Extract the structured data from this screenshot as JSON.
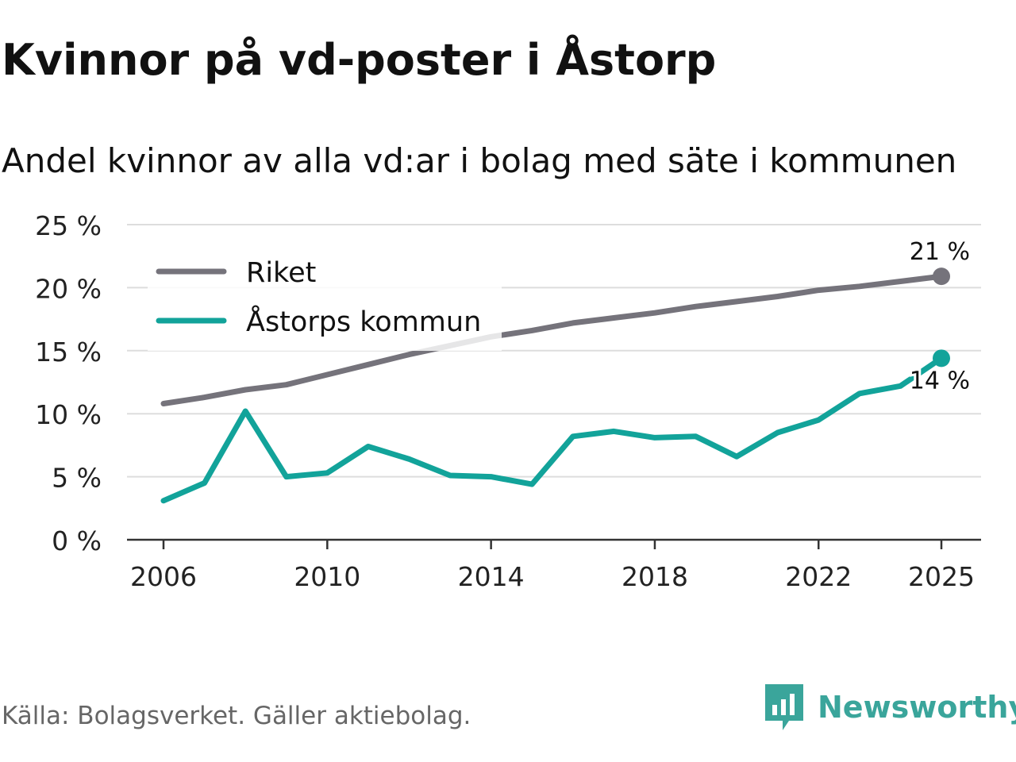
{
  "title": "Kvinnor på vd-poster i Åstorp",
  "subtitle": "Andel kvinnor av alla vd:ar i bolag med säte i kommunen",
  "source": "Källa: Bolagsverket. Gäller aktiebolag.",
  "brand": "Newsworthy",
  "colors": {
    "riket": "#75737b",
    "kommun": "#12a39a",
    "grid": "#dddddd",
    "axis": "#333333",
    "brand": "#3aa59b"
  },
  "chart_data": {
    "type": "line",
    "title": "Kvinnor på vd-poster i Åstorp",
    "subtitle": "Andel kvinnor av alla vd:ar i bolag med säte i kommunen",
    "xlabel": "",
    "ylabel": "",
    "x": [
      2006,
      2007,
      2008,
      2009,
      2010,
      2011,
      2012,
      2013,
      2014,
      2015,
      2016,
      2017,
      2018,
      2019,
      2020,
      2021,
      2022,
      2023,
      2024,
      2025
    ],
    "xlim": [
      2006,
      2025
    ],
    "ylim": [
      0,
      25
    ],
    "x_ticks": [
      2006,
      2010,
      2014,
      2018,
      2022,
      2025
    ],
    "y_ticks": [
      0,
      5,
      10,
      15,
      20,
      25
    ],
    "y_tick_labels": [
      "0 %",
      "5 %",
      "10 %",
      "15 %",
      "20 %",
      "25 %"
    ],
    "grid": true,
    "legend_position": "top-left",
    "series": [
      {
        "name": "Riket",
        "key": "riket",
        "values": [
          10.8,
          11.3,
          11.9,
          12.3,
          13.1,
          13.9,
          14.7,
          15.4,
          16.1,
          16.6,
          17.2,
          17.6,
          18.0,
          18.5,
          18.9,
          19.3,
          19.8,
          20.1,
          20.5,
          20.9
        ],
        "end_label": "21 %"
      },
      {
        "name": "Åstorps kommun",
        "key": "kommun",
        "values": [
          3.1,
          4.5,
          10.2,
          5.0,
          5.3,
          7.4,
          6.4,
          5.1,
          5.0,
          4.4,
          8.2,
          8.6,
          8.1,
          8.2,
          6.6,
          8.5,
          9.5,
          11.6,
          12.2,
          14.4
        ],
        "end_label": "14 %"
      }
    ]
  }
}
